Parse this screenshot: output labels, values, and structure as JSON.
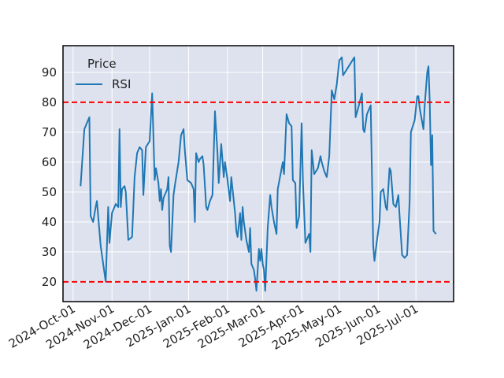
{
  "chart_data": {
    "type": "line",
    "legend_title": "Price",
    "legend_loc": "upper left",
    "grid": true,
    "x": [
      "2024-10-07",
      "2024-10-10",
      "2024-10-14",
      "2024-10-15",
      "2024-10-17",
      "2024-10-19",
      "2024-10-20",
      "2024-10-23",
      "2024-10-27",
      "2024-10-29",
      "2024-10-30",
      "2024-11-01",
      "2024-11-04",
      "2024-11-06",
      "2024-11-07",
      "2024-11-08",
      "2024-11-09",
      "2024-11-11",
      "2024-11-12",
      "2024-11-14",
      "2024-11-17",
      "2024-11-19",
      "2024-11-21",
      "2024-11-23",
      "2024-11-25",
      "2024-11-26",
      "2024-11-28",
      "2024-12-01",
      "2024-12-03",
      "2024-12-05",
      "2024-12-06",
      "2024-12-08",
      "2024-12-09",
      "2024-12-10",
      "2024-12-11",
      "2024-12-12",
      "2024-12-15",
      "2024-12-16",
      "2024-12-17",
      "2024-12-18",
      "2024-12-20",
      "2024-12-21",
      "2024-12-24",
      "2024-12-26",
      "2024-12-28",
      "2024-12-29",
      "2024-12-31",
      "2025-01-03",
      "2025-01-05",
      "2025-01-06",
      "2025-01-07",
      "2025-01-09",
      "2025-01-10",
      "2025-01-12",
      "2025-01-13",
      "2025-01-15",
      "2025-01-16",
      "2025-01-18",
      "2025-01-20",
      "2025-01-22",
      "2025-01-24",
      "2025-01-25",
      "2025-01-27",
      "2025-01-29",
      "2025-01-30",
      "2025-02-01",
      "2025-02-03",
      "2025-02-04",
      "2025-02-05",
      "2025-02-07",
      "2025-02-08",
      "2025-02-09",
      "2025-02-11",
      "2025-02-12",
      "2025-02-13",
      "2025-02-14",
      "2025-02-16",
      "2025-02-18",
      "2025-02-19",
      "2025-02-20",
      "2025-02-22",
      "2025-02-23",
      "2025-02-24",
      "2025-02-26",
      "2025-02-27",
      "2025-02-28",
      "2025-03-01",
      "2025-03-02",
      "2025-03-03",
      "2025-03-05",
      "2025-03-07",
      "2025-03-08",
      "2025-03-10",
      "2025-03-12",
      "2025-03-13",
      "2025-03-17",
      "2025-03-18",
      "2025-03-20",
      "2025-03-22",
      "2025-03-24",
      "2025-03-25",
      "2025-03-27",
      "2025-03-28",
      "2025-03-29",
      "2025-03-30",
      "2025-04-01",
      "2025-04-02",
      "2025-04-04",
      "2025-04-07",
      "2025-04-08",
      "2025-04-09",
      "2025-04-11",
      "2025-04-14",
      "2025-04-16",
      "2025-04-17",
      "2025-04-19",
      "2025-04-21",
      "2025-04-23",
      "2025-04-25",
      "2025-04-27",
      "2025-04-29",
      "2025-05-01",
      "2025-05-03",
      "2025-05-04",
      "2025-05-07",
      "2025-05-10",
      "2025-05-13",
      "2025-05-14",
      "2025-05-16",
      "2025-05-19",
      "2025-05-20",
      "2025-05-21",
      "2025-05-23",
      "2025-05-26",
      "2025-05-28",
      "2025-05-29",
      "2025-05-31",
      "2025-06-02",
      "2025-06-03",
      "2025-06-05",
      "2025-06-07",
      "2025-06-08",
      "2025-06-10",
      "2025-06-11",
      "2025-06-13",
      "2025-06-15",
      "2025-06-17",
      "2025-06-18",
      "2025-06-20",
      "2025-06-22",
      "2025-06-24",
      "2025-06-26",
      "2025-06-27",
      "2025-06-30",
      "2025-07-02",
      "2025-07-03",
      "2025-07-04",
      "2025-07-07",
      "2025-07-08",
      "2025-07-10",
      "2025-07-11",
      "2025-07-12",
      "2025-07-13",
      "2025-07-14",
      "2025-07-15",
      "2025-07-17"
    ],
    "series": [
      {
        "name": "RSI",
        "color": "#1f77b4",
        "values": [
          52,
          71,
          75,
          42,
          40,
          45,
          47,
          32,
          20,
          45,
          33,
          43,
          46,
          45,
          71,
          45,
          51,
          52,
          50,
          34,
          35,
          55,
          63,
          65,
          64,
          49,
          65,
          67,
          83,
          54,
          58,
          53,
          47,
          51,
          44,
          48,
          51,
          55,
          32,
          30,
          49,
          52,
          60,
          69,
          71,
          64,
          54,
          53,
          51,
          40,
          63,
          60,
          61,
          62,
          59,
          45,
          44,
          47,
          49,
          77,
          63,
          53,
          66,
          55,
          60,
          54,
          47,
          55,
          51,
          43,
          37,
          35,
          43,
          34,
          45,
          40,
          34,
          30,
          38,
          26,
          24,
          21,
          17,
          31,
          27,
          31,
          26,
          24,
          17,
          38,
          49,
          45,
          40,
          36,
          51,
          60,
          56,
          76,
          73,
          72,
          54,
          53,
          38,
          40,
          42,
          73,
          54,
          33,
          36,
          30,
          64,
          56,
          58,
          62,
          60,
          57,
          55,
          62,
          84,
          81,
          86,
          94,
          95,
          89,
          91,
          93,
          95,
          75,
          78,
          83,
          71,
          70,
          76,
          79,
          32,
          27,
          34,
          40,
          50,
          51,
          45,
          44,
          58,
          57,
          46,
          45,
          49,
          42,
          29,
          28,
          29,
          47,
          70,
          74,
          82,
          82,
          78,
          71,
          79,
          90,
          92,
          80,
          59,
          69,
          37,
          36
        ]
      }
    ],
    "hlines": [
      {
        "value": 80,
        "color": "#ff0000"
      },
      {
        "value": 20,
        "color": "#ff0000"
      }
    ],
    "xlim": [
      "2024-09-23",
      "2025-07-31"
    ],
    "xticks": [
      {
        "value": "2024-10-01",
        "label": "2024-Oct-01"
      },
      {
        "value": "2024-11-01",
        "label": "2024-Nov-01"
      },
      {
        "value": "2024-12-01",
        "label": "2024-Dec-01"
      },
      {
        "value": "2025-01-01",
        "label": "2025-Jan-01"
      },
      {
        "value": "2025-02-01",
        "label": "2025-Feb-01"
      },
      {
        "value": "2025-03-01",
        "label": "2025-Mar-01"
      },
      {
        "value": "2025-04-01",
        "label": "2025-Apr-01"
      },
      {
        "value": "2025-05-01",
        "label": "2025-May-01"
      },
      {
        "value": "2025-06-01",
        "label": "2025-Jun-01"
      },
      {
        "value": "2025-07-01",
        "label": "2025-Jul-01"
      }
    ],
    "ylim": [
      13.4,
      98.9
    ],
    "yticks": [
      20,
      30,
      40,
      50,
      60,
      70,
      80,
      90
    ]
  }
}
